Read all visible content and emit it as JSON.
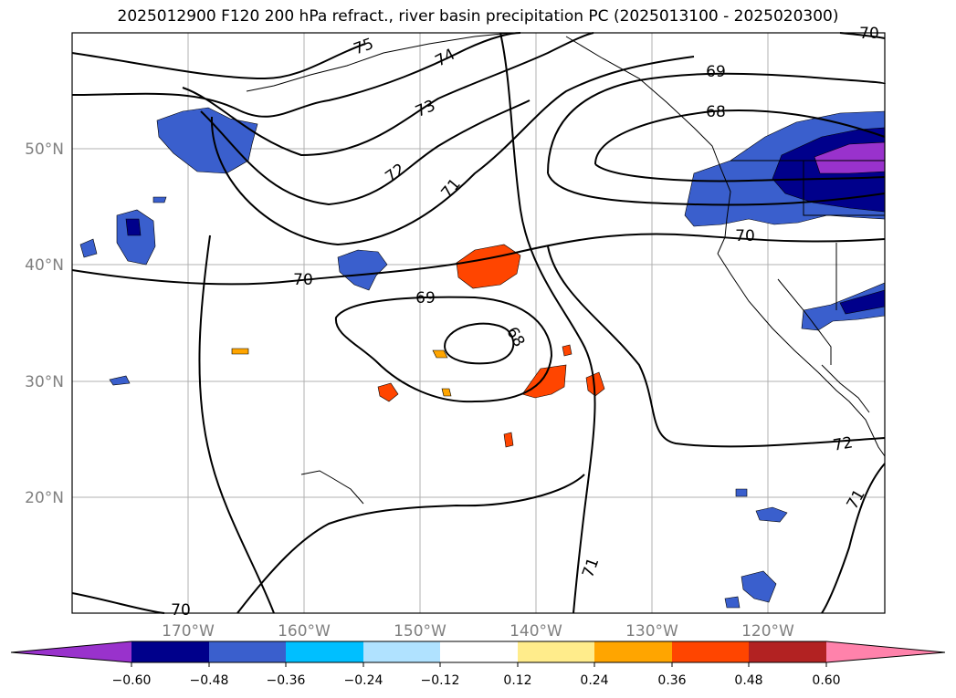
{
  "title": "2025012900 F120 200 hPa refract., river basin precipitation PC (2025013100 - 2025020300)",
  "lat_labels": [
    "50°N",
    "40°N",
    "30°N",
    "20°N"
  ],
  "lon_labels": [
    "170°W",
    "160°W",
    "150°W",
    "140°W",
    "130°W",
    "120°W"
  ],
  "contour_labels": [
    "75",
    "74",
    "73",
    "72",
    "71",
    "70",
    "69",
    "68",
    "69",
    "68",
    "70",
    "72",
    "71",
    "71",
    "70",
    "70"
  ],
  "colorbar": {
    "ticks": [
      "−0.60",
      "−0.48",
      "−0.36",
      "−0.24",
      "−0.12",
      "0.12",
      "0.24",
      "0.36",
      "0.48",
      "0.60"
    ],
    "colors": [
      "#9932cc",
      "#00008b",
      "#3a5fcd",
      "#00bfff",
      "#b0e2ff",
      "#ffffff",
      "#ffec8b",
      "#ffa500",
      "#ff4500",
      "#b22222",
      "#ff82ab"
    ]
  },
  "colors": {
    "negative_fill": "#3a5fcd",
    "strong_negative_fill": "#00008b",
    "extreme_negative_fill": "#9932cc",
    "positive_fill": "#ff4500",
    "light_positive_fill": "#ffa500",
    "grid": "#b0b0b0",
    "tick_label": "#808080"
  }
}
